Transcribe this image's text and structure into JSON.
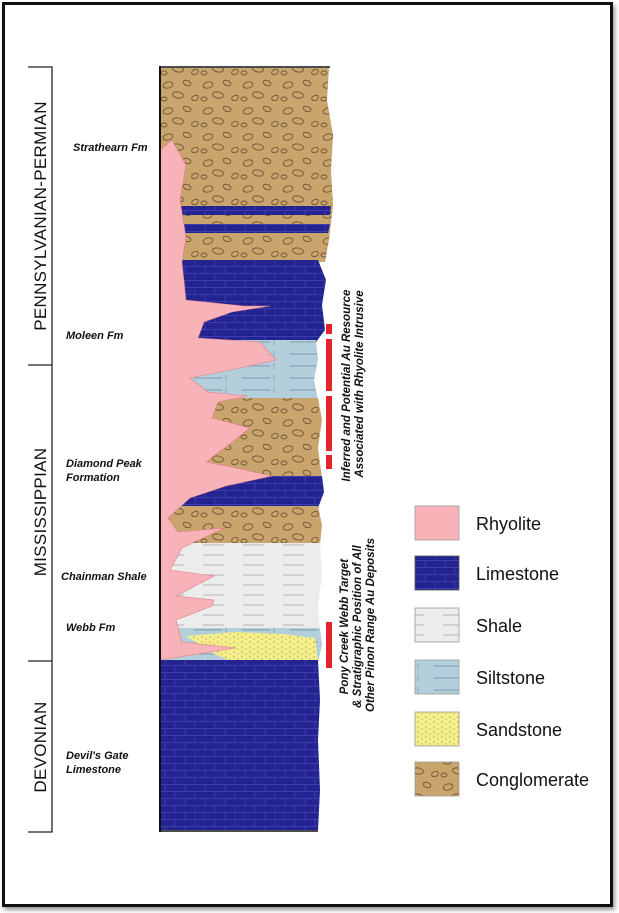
{
  "eras": [
    {
      "id": "pennsylvanian-permian",
      "label": "PENNSYLVANIAN-PERMIAN"
    },
    {
      "id": "mississippian",
      "label": "MISSISSIPPIAN"
    },
    {
      "id": "devonian",
      "label": "DEVONIAN"
    }
  ],
  "formations": [
    {
      "id": "strathearn",
      "lines": [
        "Strathearn Fm"
      ]
    },
    {
      "id": "moleen",
      "lines": [
        "Moleen Fm"
      ]
    },
    {
      "id": "diamond-peak",
      "lines": [
        "Diamond Peak",
        "Formation"
      ]
    },
    {
      "id": "chainman",
      "lines": [
        "Chainman Shale"
      ]
    },
    {
      "id": "webb",
      "lines": [
        "Webb Fm"
      ]
    },
    {
      "id": "devils-gate",
      "lines": [
        "Devil's Gate",
        "Limestone"
      ]
    }
  ],
  "annotations": {
    "resource": [
      "Inferred and Potential Au Resource",
      "Associated with Rhyolite Intrusive"
    ],
    "target": [
      "Pony Creek Webb Target",
      "& Stratigraphic Position of All",
      "Other Pinon Range Au Deposits"
    ]
  },
  "legend": [
    {
      "id": "rhyolite",
      "label": "Rhyolite",
      "color": "#f7b3b8"
    },
    {
      "id": "limestone",
      "label": "Limestone",
      "color": "#23248f"
    },
    {
      "id": "shale",
      "label": "Shale",
      "color": "#ececec"
    },
    {
      "id": "siltstone",
      "label": "Siltstone",
      "color": "#b4cfdc"
    },
    {
      "id": "sandstone",
      "label": "Sandstone",
      "color": "#f4ef8a"
    },
    {
      "id": "conglomerate",
      "label": "Conglomerate",
      "color": "#c9a46c"
    }
  ]
}
